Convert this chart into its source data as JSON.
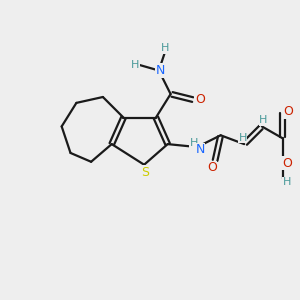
{
  "background_color": "#eeeeee",
  "bond_color": "#1a1a1a",
  "sulfur_color": "#cccc00",
  "nitrogen_color": "#1a66ff",
  "oxygen_color": "#cc2200",
  "h_color": "#4a9a9a",
  "bond_width": 1.6,
  "figsize": [
    3.0,
    3.0
  ],
  "dpi": 100,
  "xlim": [
    0,
    10
  ],
  "ylim": [
    0,
    10
  ]
}
